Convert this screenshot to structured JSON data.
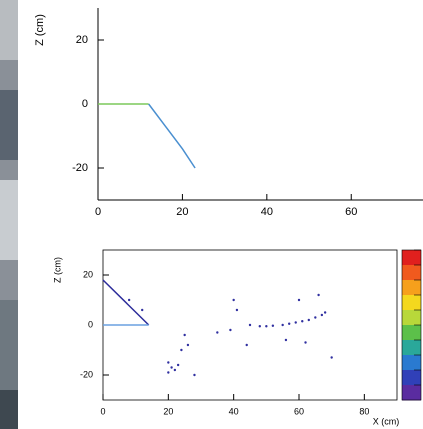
{
  "chart_data": [
    {
      "type": "line",
      "y_label": "Z (cm)",
      "xlim": [
        0,
        77
      ],
      "ylim": [
        -30,
        30
      ],
      "xticks": [
        0,
        20,
        40,
        60
      ],
      "yticks": [
        -20,
        0,
        20
      ],
      "series": [
        {
          "color": "#7cc85a",
          "style": "line",
          "x": [
            0,
            12
          ],
          "values": [
            0,
            0
          ]
        },
        {
          "color": "#4a8fd0",
          "style": "line",
          "x": [
            12,
            16,
            20,
            23
          ],
          "values": [
            0,
            -7,
            -14,
            -20
          ]
        }
      ]
    },
    {
      "type": "scatter",
      "x_label": "X (cm)",
      "y_label": "Z (cm)",
      "xlim": [
        0,
        90
      ],
      "ylim": [
        -30,
        30
      ],
      "xticks": [
        0,
        20,
        40,
        60,
        80
      ],
      "yticks": [
        -20,
        0,
        20
      ],
      "colorbar_colors": [
        "#e0201e",
        "#f05a1e",
        "#f6a01c",
        "#f4d81e",
        "#b8d83a",
        "#5cc04a",
        "#2aa89a",
        "#2a7ad0",
        "#3040b8",
        "#5a2ca0"
      ],
      "series": [
        {
          "color": "#2b2b9a",
          "style": "line",
          "x": [
            0,
            14
          ],
          "values": [
            18,
            0
          ]
        },
        {
          "color": "#6aa0e0",
          "style": "line",
          "x": [
            0,
            14
          ],
          "values": [
            0,
            0
          ]
        },
        {
          "color": "#3030a0",
          "style": "points",
          "x": [
            45,
            48,
            50,
            52,
            55,
            57,
            59,
            61,
            63,
            65,
            67,
            68,
            20,
            21,
            22,
            20,
            23,
            25,
            24,
            26,
            8,
            12,
            40,
            41,
            39,
            44,
            56,
            60,
            66,
            70,
            62,
            35,
            28
          ],
          "values": [
            0,
            -0.5,
            -0.5,
            -0.3,
            0,
            0.5,
            1,
            1.5,
            2,
            3,
            4,
            5,
            -15,
            -17,
            -18,
            -19,
            -16,
            -4,
            -10,
            -8,
            10,
            6,
            10,
            6,
            -2,
            -8,
            -6,
            10,
            12,
            -13,
            -7,
            -3,
            -20
          ]
        }
      ]
    }
  ]
}
